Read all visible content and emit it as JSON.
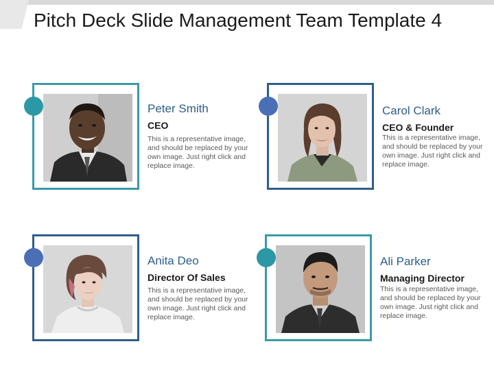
{
  "slide": {
    "title": "Pitch Deck Slide Management Team Template 4"
  },
  "colors": {
    "teal": "#3a9aa8",
    "navy": "#2e5d8a",
    "slate": "#4a6f8f",
    "blue_dot": "#4a6fb5",
    "teal_dot": "#2c98a6"
  },
  "team": [
    {
      "name": "Peter Smith",
      "role": "CEO",
      "description": "This is a representative image, and should be replaced by your own image. Just right click and replace image.",
      "photo_icon": "portrait-man-smiling"
    },
    {
      "name": "Carol Clark",
      "role": "CEO & Founder",
      "description": "This is a representative image, and should be replaced by your own image. Just right click and replace image.",
      "photo_icon": "portrait-woman-blazer"
    },
    {
      "name": "Anita Deo",
      "role": "Director Of Sales",
      "description": "This is a representative image, and should be replaced by your own image. Just right click and replace image.",
      "photo_icon": "portrait-woman-short-hair"
    },
    {
      "name": "Ali Parker",
      "role": "Managing Director",
      "description": "This is a representative image, and should be replaced by your own image. Just right click and replace image.",
      "photo_icon": "portrait-man-suit"
    }
  ]
}
